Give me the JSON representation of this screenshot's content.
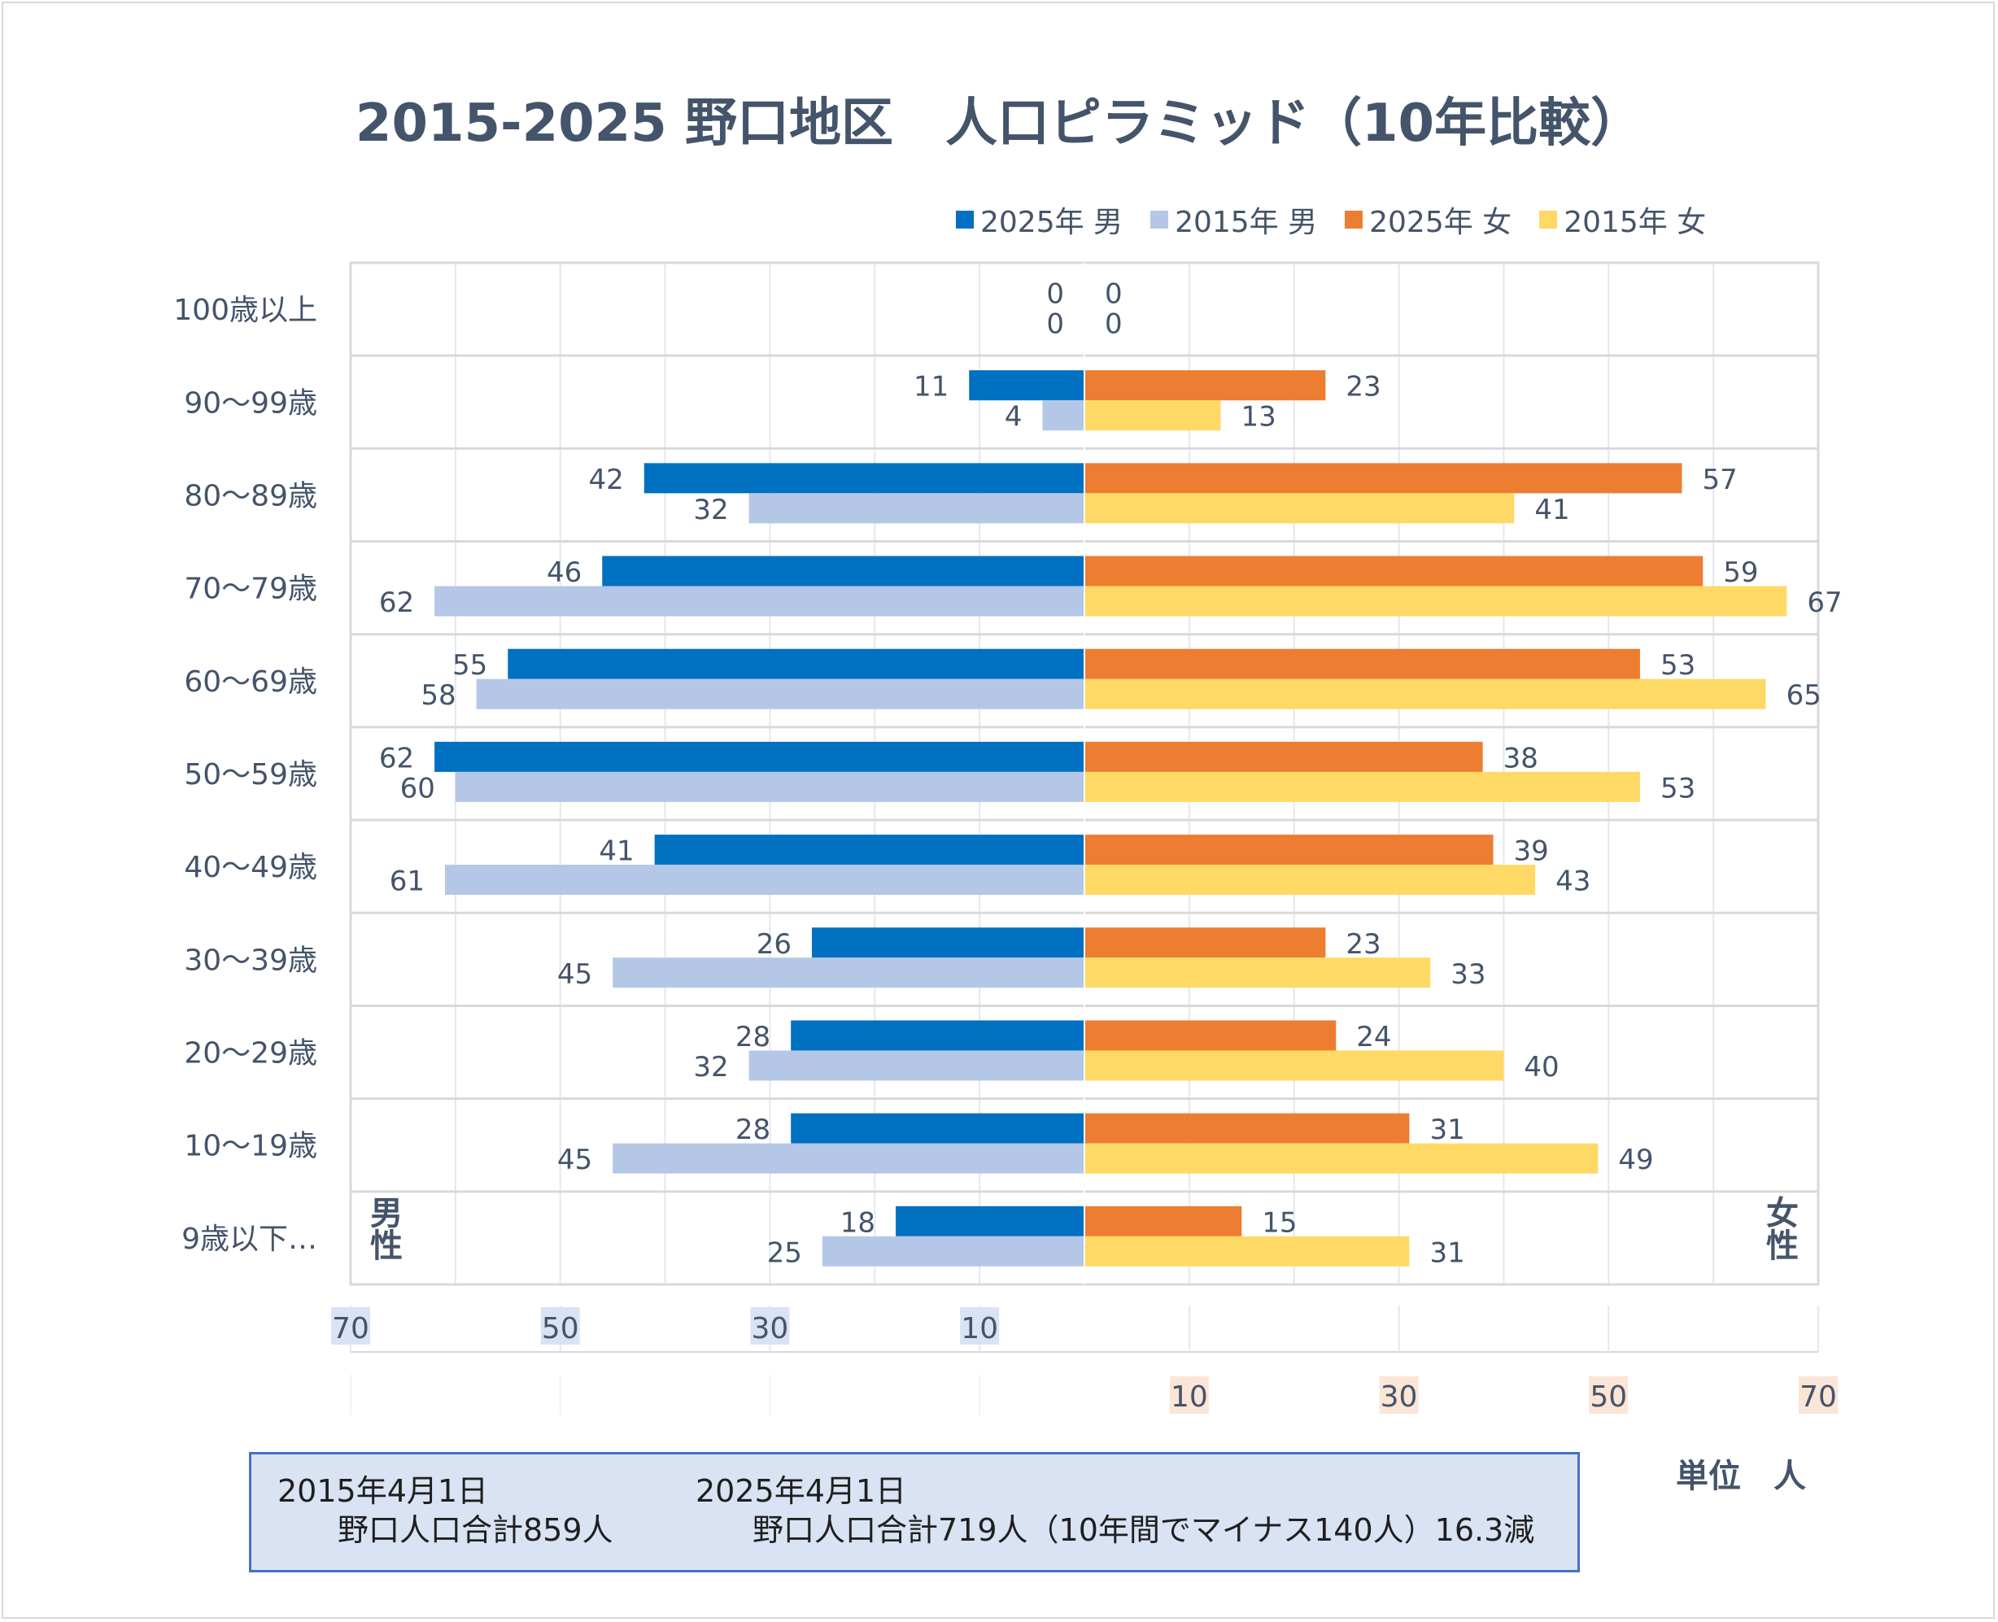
{
  "title": "2015-2025 野口地区　人口ピラミッド（10年比較）",
  "legend": [
    {
      "label": "2025年 男",
      "color": "#0070c0"
    },
    {
      "label": "2015年 男",
      "color": "#b4c7e7"
    },
    {
      "label": "2025年 女",
      "color": "#ed7d31"
    },
    {
      "label": "2015年 女",
      "color": "#ffd966"
    }
  ],
  "gender_labels": {
    "male": "男\n性",
    "female": "女\n性"
  },
  "unit_label": "単位　人",
  "note": {
    "left_date": "2015年4月1日",
    "left_total": "野口人口合計859人",
    "right_date": "2025年4月1日",
    "right_total": "野口人口合計719人（10年間でマイナス140人）16.3減"
  },
  "chart_data": {
    "type": "bar",
    "orientation": "horizontal",
    "layout": "population-pyramid",
    "title": "2015-2025 野口地区　人口ピラミッド（10年比較）",
    "categories": [
      "100歳以上",
      "90～99歳",
      "80～89歳",
      "70～79歳",
      "60～69歳",
      "50～59歳",
      "40～49歳",
      "30～39歳",
      "20～29歳",
      "10～19歳",
      "9歳以下…"
    ],
    "series": [
      {
        "name": "2025年 男",
        "side": "male",
        "color": "#0070c0",
        "values": [
          0,
          11,
          42,
          46,
          55,
          62,
          41,
          26,
          28,
          28,
          18
        ]
      },
      {
        "name": "2015年 男",
        "side": "male",
        "color": "#b4c7e7",
        "values": [
          0,
          4,
          32,
          62,
          58,
          60,
          61,
          45,
          32,
          45,
          25
        ]
      },
      {
        "name": "2025年 女",
        "side": "female",
        "color": "#ed7d31",
        "values": [
          0,
          23,
          57,
          59,
          53,
          38,
          39,
          23,
          24,
          31,
          15
        ]
      },
      {
        "name": "2015年 女",
        "side": "female",
        "color": "#ffd966",
        "values": [
          0,
          13,
          41,
          67,
          65,
          53,
          43,
          33,
          40,
          49,
          31
        ]
      }
    ],
    "xlim": [
      0,
      70
    ],
    "male_ticks": [
      70,
      50,
      30,
      10
    ],
    "female_ticks": [
      10,
      30,
      50,
      70
    ],
    "legend_position": "top-right",
    "grid": true
  }
}
